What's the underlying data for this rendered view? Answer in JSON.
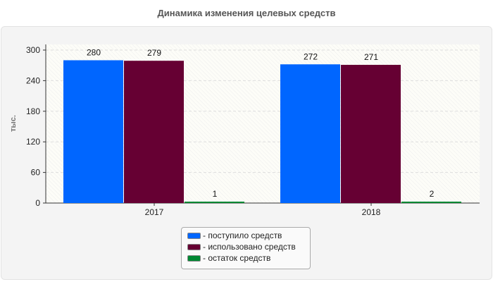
{
  "chart_data": {
    "type": "bar",
    "title": "Динамика изменения целевых средств",
    "ylabel": "тыс.",
    "xlabel": "",
    "categories": [
      "2017",
      "2018"
    ],
    "ylim": [
      0,
      300
    ],
    "yticks": [
      0,
      60,
      120,
      180,
      240,
      300
    ],
    "grid": true,
    "legend_position": "bottom",
    "series": [
      {
        "name": "- поступило средств",
        "color": "#0066ff",
        "values": [
          280,
          272
        ]
      },
      {
        "name": "- использовано средств",
        "color": "#660033",
        "values": [
          279,
          271
        ]
      },
      {
        "name": "- остаток средств",
        "color": "#008833",
        "values": [
          1,
          2
        ]
      }
    ]
  }
}
